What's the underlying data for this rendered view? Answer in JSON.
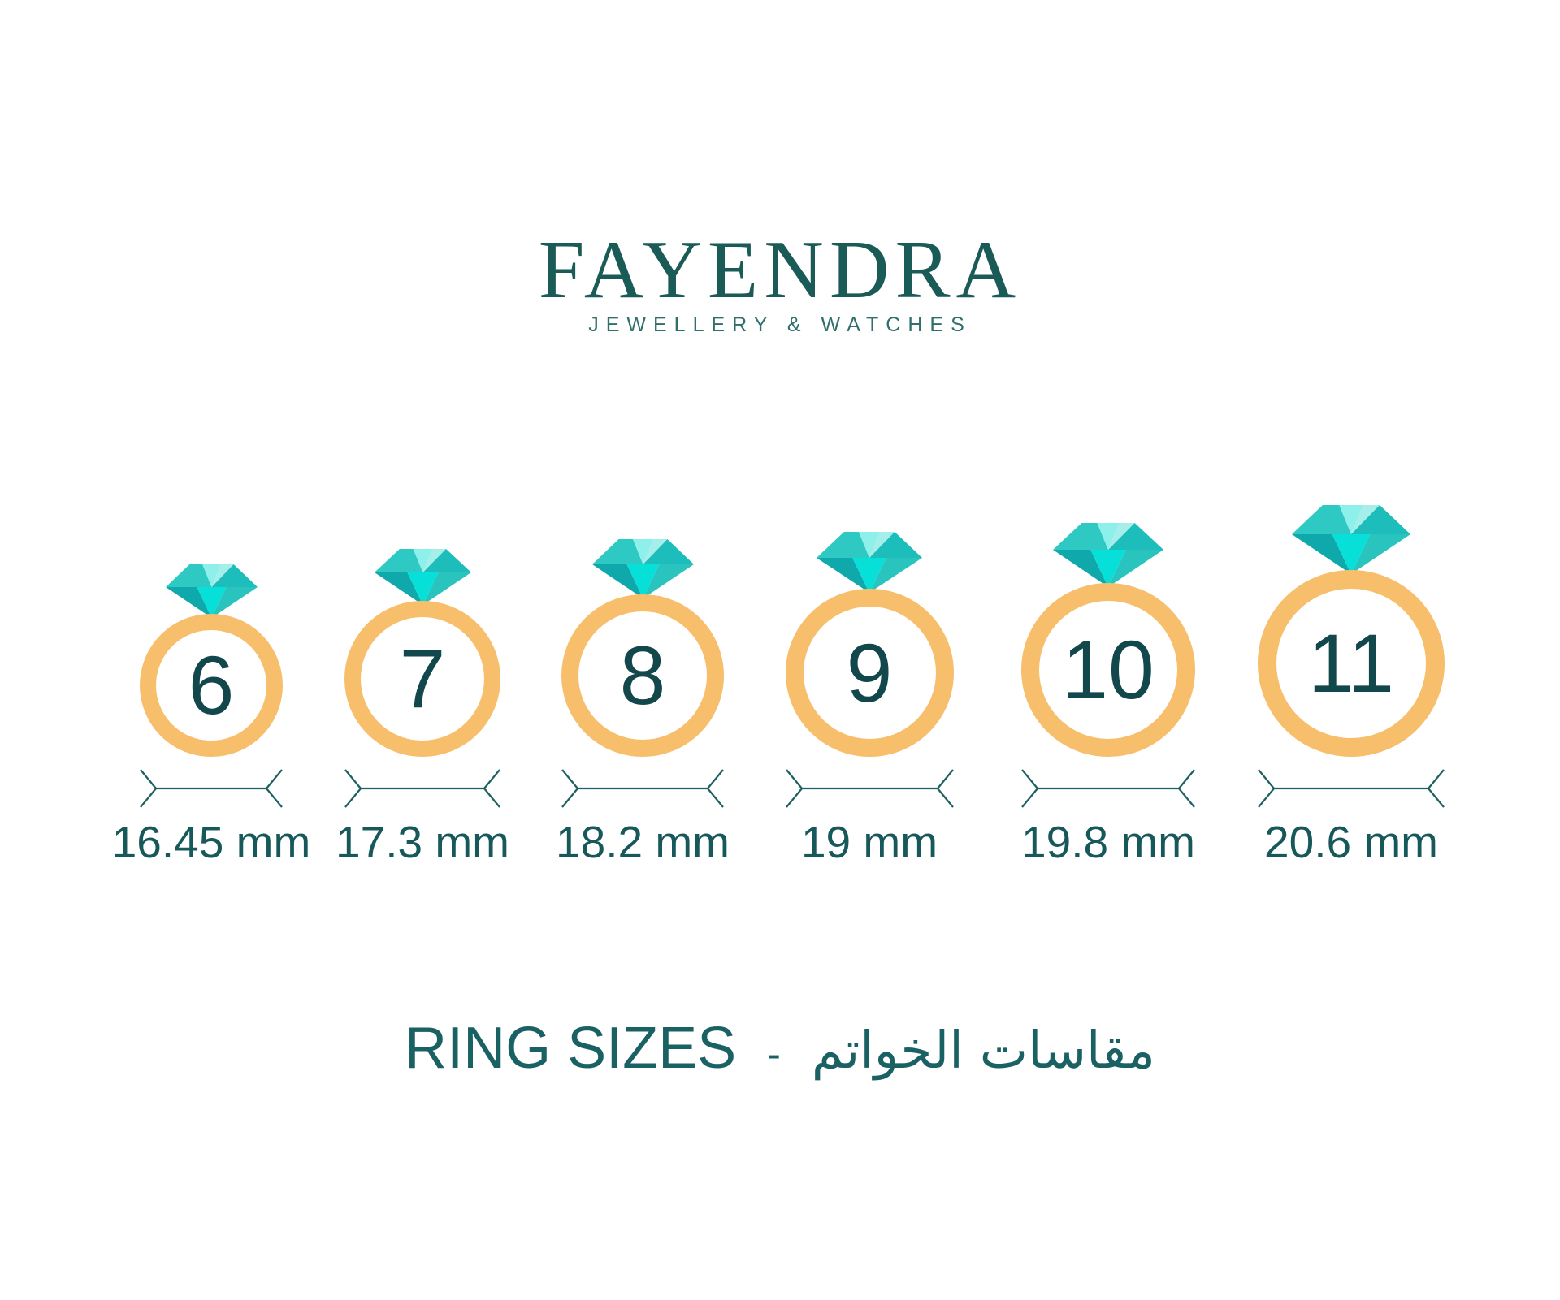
{
  "brand": {
    "name": "FAYENDRA",
    "tagline": "JEWELLERY & WATCHES"
  },
  "title": {
    "en": "RING SIZES",
    "separator": "-",
    "ar": "مقاسات الخواتم"
  },
  "rings": [
    {
      "size": "6",
      "diameter_label": "16.45 mm"
    },
    {
      "size": "7",
      "diameter_label": "17.3 mm"
    },
    {
      "size": "8",
      "diameter_label": "18.2 mm"
    },
    {
      "size": "9",
      "diameter_label": "19 mm"
    },
    {
      "size": "10",
      "diameter_label": "19.8 mm"
    },
    {
      "size": "11",
      "diameter_label": "20.6 mm"
    }
  ],
  "colors": {
    "background": "#FFFFFF",
    "logo_text": "#1A5A57",
    "tagline_text": "#2F6F6C",
    "title_text": "#1A6163",
    "ring_number_text": "#12474C",
    "label_text": "#17585B",
    "dimension_line": "#1D6062",
    "band_gold": "#F7BE6C",
    "diamond": {
      "crown_left": "#2FC9C3",
      "crown_center": "#8DF0EA",
      "crown_right_inner": "#A6EEE9",
      "crown_right": "#1CBDBB",
      "pavilion_left": "#10A9AB",
      "pavilion_center": "#06E0D8",
      "pavilion_right": "#2AC4BF"
    }
  }
}
